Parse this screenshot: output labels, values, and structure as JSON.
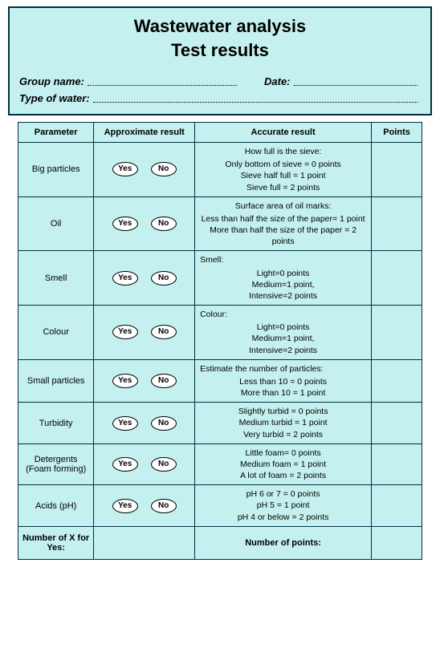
{
  "header": {
    "title": "Wastewater analysis",
    "subtitle": "Test results",
    "group_label": "Group name:",
    "date_label": "Date:",
    "type_label": "Type of water:"
  },
  "columns": {
    "c1": "Parameter",
    "c2": "Approximate result",
    "c3": "Accurate result",
    "c4": "Points"
  },
  "yn": {
    "yes": "Yes",
    "no": "No"
  },
  "rows": [
    {
      "param": "Big particles",
      "lead": "How full is the sieve:",
      "lines": "Only bottom of sieve = 0 points\nSieve half full = 1 point\nSieve full = 2 points",
      "left": false
    },
    {
      "param": "Oil",
      "lead": "Surface area of oil marks:",
      "lines": "Less than half the size of the paper= 1 point\nMore than half the size of the paper = 2 points",
      "left": false
    },
    {
      "param": "Smell",
      "lead": "Smell:",
      "lines": "Light=0 points\nMedium=1 point,\nIntensive=2 points",
      "left": true
    },
    {
      "param": "Colour",
      "lead": "Colour:",
      "lines": "Light=0 points\nMedium=1 point,\nIntensive=2 points",
      "left": true
    },
    {
      "param": "Small particles",
      "lead": "Estimate the number of particles:",
      "lines": "Less than 10 = 0 points\nMore than 10 = 1 point",
      "left": true
    },
    {
      "param": "Turbidity",
      "lead": "",
      "lines": "Slightly turbid = 0 points\nMedium turbid = 1 point\nVery turbid = 2 points",
      "left": false
    },
    {
      "param": "Detergents (Foam forming)",
      "lead": "",
      "lines": "Little foam= 0 points\nMedium foam = 1 point\nA lot of foam = 2 points",
      "left": false
    },
    {
      "param": "Acids (pH)",
      "lead": "",
      "lines": "pH 6 or 7 = 0 points\npH 5 = 1 point\npH 4 or below = 2 points",
      "left": false
    }
  ],
  "footer": {
    "left": "Number of X for Yes:",
    "right": "Number of points:"
  },
  "style": {
    "bg": "#c5f0f0",
    "border": "#003040",
    "pill_bg": "#ffffff"
  }
}
